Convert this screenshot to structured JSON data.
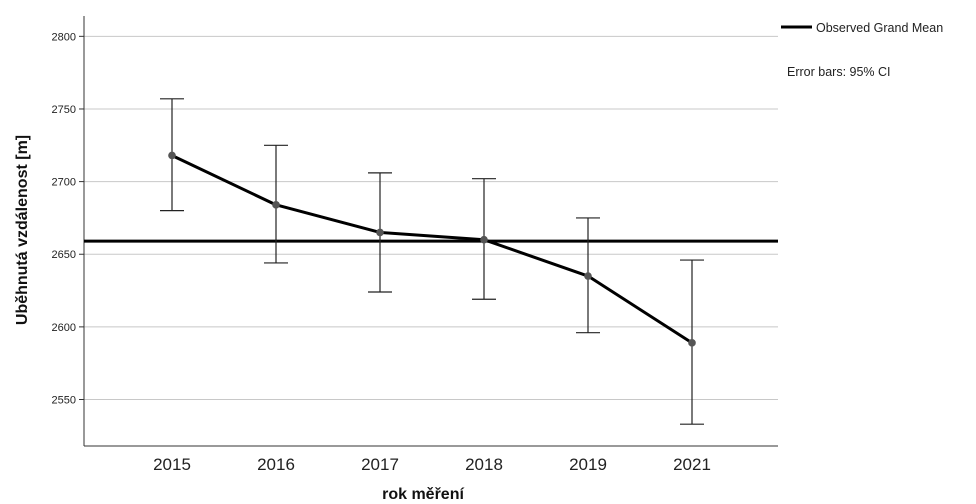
{
  "chart_data": {
    "type": "line",
    "categories": [
      "2015",
      "2016",
      "2017",
      "2018",
      "2019",
      "2021"
    ],
    "series": [
      {
        "values": [
          2718,
          2684,
          2665,
          2660,
          2635,
          2589
        ],
        "ci_lower": [
          2680,
          2644,
          2624,
          2619,
          2596,
          2533
        ],
        "ci_upper": [
          2757,
          2725,
          2706,
          2702,
          2675,
          2646
        ]
      }
    ],
    "reference_line": {
      "name": "Observed Grand Mean",
      "value": 2659
    },
    "annotation": "Error bars: 95% CI",
    "xlabel": "rok měření",
    "ylabel": "Uběhnutá vzdálenost [m]",
    "ylim": [
      2518,
      2814
    ],
    "yticks": [
      2550,
      2600,
      2650,
      2700,
      2750,
      2800
    ],
    "grid": true,
    "legend_position": "top-right",
    "colors": {
      "line": "#000000",
      "marker": "#555555",
      "grid": "#c8c8c8",
      "axis": "#333333"
    }
  }
}
